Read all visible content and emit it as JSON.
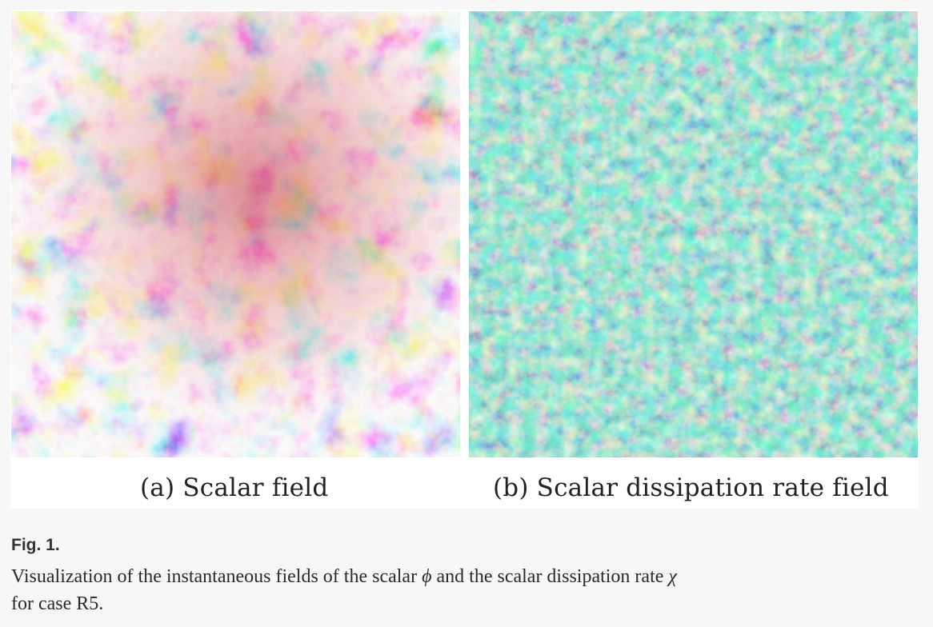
{
  "figure": {
    "panels": [
      {
        "id": "a",
        "subcaption": "(a) Scalar field",
        "colormap": "red-white-blue diverging",
        "colors": [
          "#08306b",
          "#2b7bba",
          "#a8dcec",
          "#f4f6f6",
          "#f2b2ac",
          "#d34a4e",
          "#67000d"
        ]
      },
      {
        "id": "b",
        "subcaption": "(b) Scalar dissipation rate field",
        "colormap": "yellow-green-blue",
        "colors": [
          "#f5fca8",
          "#c4ea9a",
          "#7fce92",
          "#40b2b9",
          "#2a73b6",
          "#0c3f96"
        ]
      }
    ],
    "caption": {
      "label": "Fig. 1.",
      "line1_before_phi": "Visualization of the instantaneous fields of the scalar ",
      "phi": "ϕ",
      "between": " and the scalar dissipation rate ",
      "chi": "χ",
      "line2": "for case R5."
    }
  }
}
